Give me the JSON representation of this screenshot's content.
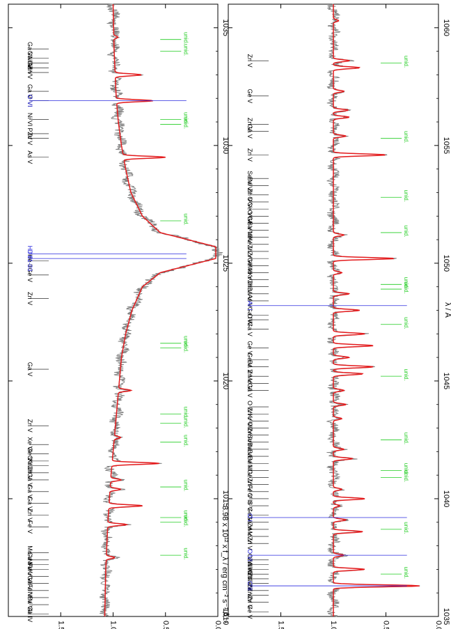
{
  "chart_data": {
    "type": "line",
    "orientation": "rotated-90-cw",
    "y_axis_label": "3.98 x 10¹² x f_λ / erg cm⁻² s⁻¹ Å⁻¹",
    "x_axis_label": "λ / Å",
    "unid_label": "unid.",
    "series_colors": {
      "observed": "#808080",
      "model": "#e41a1c",
      "lines": "#000000",
      "interstellar": "#2a2adf",
      "unidentified": "#1fcc1f"
    },
    "panels": [
      {
        "name": "top",
        "xlim": [
          1010,
          1036
        ],
        "ylim": [
          0.0,
          2.0
        ],
        "xticks": [
          1010,
          1015,
          1020,
          1025,
          1030,
          1035
        ],
        "yticks": [
          0.0,
          0.5,
          1.0,
          1.5
        ],
        "continuum": [
          [
            1010,
            1.08
          ],
          [
            1012,
            1.07
          ],
          [
            1014,
            1.05
          ],
          [
            1016,
            1.02
          ],
          [
            1018,
            0.98
          ],
          [
            1020,
            0.94
          ],
          [
            1021,
            0.92
          ],
          [
            1022,
            0.88
          ],
          [
            1023,
            0.82
          ],
          [
            1024,
            0.72
          ],
          [
            1024.6,
            0.55
          ],
          [
            1025.2,
            0.02
          ],
          [
            1025.7,
            0.02
          ],
          [
            1026.3,
            0.55
          ],
          [
            1027,
            0.72
          ],
          [
            1028,
            0.83
          ],
          [
            1029,
            0.88
          ],
          [
            1030,
            0.92
          ],
          [
            1031,
            0.95
          ],
          [
            1032,
            0.97
          ],
          [
            1034,
            0.99
          ],
          [
            1036,
            1.0
          ]
        ],
        "model_absorptions": [
          [
            1012.5,
            0.08
          ],
          [
            1013.9,
            0.18
          ],
          [
            1014.7,
            0.32
          ],
          [
            1015.4,
            0.1
          ],
          [
            1015.8,
            0.1
          ],
          [
            1016.5,
            0.45
          ],
          [
            1017.6,
            0.06
          ],
          [
            1019.6,
            0.12
          ],
          [
            1029.5,
            0.4
          ],
          [
            1031.9,
            0.35
          ],
          [
            1033.0,
            0.25
          ],
          [
            1034.6,
            0.04
          ]
        ],
        "interstellar_lines": [
          {
            "wavelength": 1025.2,
            "label": "H I 01-03"
          },
          {
            "wavelength": 1025.4,
            "label": "D I"
          },
          {
            "wavelength": 1031.9,
            "label": "O VI"
          }
        ],
        "lines": [
          {
            "wavelength": 1010.1,
            "label": "Ga IV"
          },
          {
            "wavelength": 1010.5,
            "label": "Ba VII"
          },
          {
            "wavelength": 1010.8,
            "label": "Ni V"
          },
          {
            "wavelength": 1011.1,
            "label": "Fe V"
          },
          {
            "wavelength": 1011.4,
            "label": "Ga VI"
          },
          {
            "wavelength": 1011.7,
            "label": "Kr VI"
          },
          {
            "wavelength": 1012.0,
            "label": "Fe V"
          },
          {
            "wavelength": 1012.2,
            "label": "Ni V"
          },
          {
            "wavelength": 1012.4,
            "label": "Ga VI"
          },
          {
            "wavelength": 1012.7,
            "label": "Mo V"
          },
          {
            "wavelength": 1013.8,
            "label": "Fe V"
          },
          {
            "wavelength": 1014.3,
            "label": "Zn V"
          },
          {
            "wavelength": 1014.8,
            "label": "Ga V"
          },
          {
            "wavelength": 1015.3,
            "label": "Ga V"
          },
          {
            "wavelength": 1015.8,
            "label": "Ga V"
          },
          {
            "wavelength": 1016.1,
            "label": "Zn V"
          },
          {
            "wavelength": 1016.4,
            "label": "Kr VI"
          },
          {
            "wavelength": 1016.6,
            "label": "C III"
          },
          {
            "wavelength": 1016.9,
            "label": "Ge V"
          },
          {
            "wavelength": 1017.3,
            "label": "Xe VI"
          },
          {
            "wavelength": 1018.1,
            "label": "Zn V"
          },
          {
            "wavelength": 1020.5,
            "label": "Ga V"
          },
          {
            "wavelength": 1023.5,
            "label": "Zn V"
          },
          {
            "wavelength": 1024.5,
            "label": "Ge V"
          },
          {
            "wavelength": 1025.1,
            "label": "He II"
          },
          {
            "wavelength": 1029.5,
            "label": "As V"
          },
          {
            "wavelength": 1030.3,
            "label": "Zn V"
          },
          {
            "wavelength": 1030.5,
            "label": "P IV"
          },
          {
            "wavelength": 1031.1,
            "label": "Ni VI"
          },
          {
            "wavelength": 1031.9,
            "label": "O VI"
          },
          {
            "wavelength": 1032.3,
            "label": "Ga V"
          },
          {
            "wavelength": 1033.1,
            "label": "Zn V"
          },
          {
            "wavelength": 1033.3,
            "label": "Ge V"
          },
          {
            "wavelength": 1033.5,
            "label": "Ni VI"
          },
          {
            "wavelength": 1033.7,
            "label": "Ga III"
          },
          {
            "wavelength": 1034.1,
            "label": "Ga V"
          }
        ],
        "unidentified": [
          1012.6,
          1014.0,
          1014.2,
          1015.5,
          1017.4,
          1018.2,
          1018.6,
          1021.4,
          1021.6,
          1026.8,
          1030.9,
          1031.1,
          1034.0,
          1034.5
        ]
      },
      {
        "name": "bottom",
        "xlim": [
          1035,
          1061
        ],
        "ylim": [
          0.0,
          2.0
        ],
        "xticks": [
          1035,
          1040,
          1045,
          1050,
          1055,
          1060
        ],
        "yticks": [
          0.0,
          0.5,
          1.0,
          1.5
        ],
        "continuum": [
          [
            1035,
            1.0
          ],
          [
            1061,
            1.0
          ]
        ],
        "model_absorptions": [
          [
            1036.3,
            0.82
          ],
          [
            1037.0,
            0.3
          ],
          [
            1037.6,
            0.1
          ],
          [
            1038.6,
            0.28
          ],
          [
            1039.1,
            0.12
          ],
          [
            1039.7,
            0.06
          ],
          [
            1040.0,
            0.3
          ],
          [
            1040.4,
            0.08
          ],
          [
            1041.7,
            0.18
          ],
          [
            1042.1,
            0.1
          ],
          [
            1043.4,
            0.08
          ],
          [
            1044.0,
            0.12
          ],
          [
            1044.6,
            0.1
          ],
          [
            1045.3,
            0.28
          ],
          [
            1045.6,
            0.38
          ],
          [
            1046.0,
            0.15
          ],
          [
            1046.5,
            0.38
          ],
          [
            1047.0,
            0.3
          ],
          [
            1048.0,
            0.25
          ],
          [
            1048.7,
            0.15
          ],
          [
            1049.6,
            0.08
          ],
          [
            1050.2,
            0.58
          ],
          [
            1051.2,
            0.1
          ],
          [
            1054.6,
            0.5
          ],
          [
            1055.4,
            0.12
          ],
          [
            1056.2,
            0.15
          ],
          [
            1056.5,
            0.14
          ],
          [
            1057.3,
            0.1
          ],
          [
            1058.3,
            0.25
          ],
          [
            1058.6,
            0.15
          ],
          [
            1060.3,
            0.05
          ]
        ],
        "interstellar_lines": [
          {
            "wavelength": 1036.3,
            "label": "C II"
          },
          {
            "wavelength": 1037.6,
            "label": "O VI"
          },
          {
            "wavelength": 1039.2,
            "label": "O I"
          },
          {
            "wavelength": 1048.2,
            "label": "Ar I"
          }
        ],
        "lines": [
          {
            "wavelength": 1035.2,
            "label": "Ge V"
          },
          {
            "wavelength": 1035.6,
            "label": "Zn V"
          },
          {
            "wavelength": 1035.9,
            "label": "Zn IV"
          },
          {
            "wavelength": 1036.1,
            "label": "Zn V"
          },
          {
            "wavelength": 1036.4,
            "label": "Ni IV"
          },
          {
            "wavelength": 1036.6,
            "label": "Zn V"
          },
          {
            "wavelength": 1036.8,
            "label": "Ni V"
          },
          {
            "wavelength": 1037.0,
            "label": "Ni IV"
          },
          {
            "wavelength": 1037.2,
            "label": "Zn V"
          },
          {
            "wavelength": 1037.4,
            "label": "O VI"
          },
          {
            "wavelength": 1038.1,
            "label": "Zn V"
          },
          {
            "wavelength": 1038.4,
            "label": "Mo VI"
          },
          {
            "wavelength": 1038.7,
            "label": "Zn V"
          },
          {
            "wavelength": 1039.0,
            "label": "Ge V"
          },
          {
            "wavelength": 1039.3,
            "label": "Ge VI"
          },
          {
            "wavelength": 1039.7,
            "label": "S V"
          },
          {
            "wavelength": 1040.0,
            "label": "O III"
          },
          {
            "wavelength": 1040.3,
            "label": "Fe V"
          },
          {
            "wavelength": 1040.6,
            "label": "Zn V"
          },
          {
            "wavelength": 1040.9,
            "label": "Ge VI"
          },
          {
            "wavelength": 1041.2,
            "label": "Ni V"
          },
          {
            "wavelength": 1041.5,
            "label": "Ba III"
          },
          {
            "wavelength": 1041.8,
            "label": "Ba V"
          },
          {
            "wavelength": 1042.1,
            "label": "Ba V"
          },
          {
            "wavelength": 1042.4,
            "label": "Sn IV"
          },
          {
            "wavelength": 1042.7,
            "label": "Zn IV"
          },
          {
            "wavelength": 1043.0,
            "label": "O IV"
          },
          {
            "wavelength": 1043.3,
            "label": "Kr VI"
          },
          {
            "wavelength": 1043.6,
            "label": "Zn V"
          },
          {
            "wavelength": 1043.9,
            "label": "O IV"
          },
          {
            "wavelength": 1044.6,
            "label": "Ga V"
          },
          {
            "wavelength": 1044.9,
            "label": "Mo VI"
          },
          {
            "wavelength": 1045.2,
            "label": "Zn V"
          },
          {
            "wavelength": 1045.6,
            "label": "Ba V"
          },
          {
            "wavelength": 1045.9,
            "label": "Ge V"
          },
          {
            "wavelength": 1046.4,
            "label": "Ge V"
          },
          {
            "wavelength": 1047.2,
            "label": "Ga V"
          },
          {
            "wavelength": 1047.6,
            "label": "O IV"
          },
          {
            "wavelength": 1047.8,
            "label": "Ga IV"
          },
          {
            "wavelength": 1048.4,
            "label": "As V"
          },
          {
            "wavelength": 1048.7,
            "label": "Ba V"
          },
          {
            "wavelength": 1049.0,
            "label": "Zn V"
          },
          {
            "wavelength": 1049.3,
            "label": "Kr VI"
          },
          {
            "wavelength": 1049.6,
            "label": "Mo V"
          },
          {
            "wavelength": 1049.9,
            "label": "Ge VI"
          },
          {
            "wavelength": 1050.2,
            "label": "Zr VI"
          },
          {
            "wavelength": 1050.5,
            "label": "Zn V"
          },
          {
            "wavelength": 1050.8,
            "label": "Xe VI"
          },
          {
            "wavelength": 1051.1,
            "label": "Ni V"
          },
          {
            "wavelength": 1051.4,
            "label": "Ba VII"
          },
          {
            "wavelength": 1051.7,
            "label": "Ge V"
          },
          {
            "wavelength": 1052.0,
            "label": "O IV"
          },
          {
            "wavelength": 1052.3,
            "label": "Ge V"
          },
          {
            "wavelength": 1052.6,
            "label": "O V"
          },
          {
            "wavelength": 1052.9,
            "label": "Zn V"
          },
          {
            "wavelength": 1053.3,
            "label": "Ba VII"
          },
          {
            "wavelength": 1053.6,
            "label": "Se VI"
          },
          {
            "wavelength": 1054.6,
            "label": "Zn V"
          },
          {
            "wavelength": 1055.6,
            "label": "Ga V"
          },
          {
            "wavelength": 1055.9,
            "label": "Zn V"
          },
          {
            "wavelength": 1057.1,
            "label": "Ge V"
          },
          {
            "wavelength": 1058.6,
            "label": "Zn V"
          }
        ],
        "unidentified": [
          1036.8,
          1038.7,
          1040.9,
          1041.2,
          1042.5,
          1045.2,
          1047.4,
          1048.9,
          1049.1,
          1051.3,
          1052.8,
          1055.3,
          1058.5
        ]
      }
    ]
  }
}
